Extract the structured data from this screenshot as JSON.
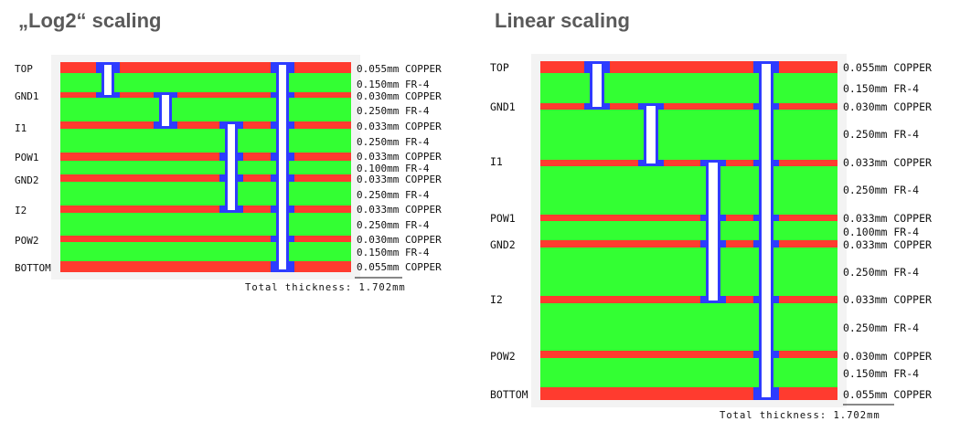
{
  "panels": {
    "left": {
      "title": "„Log2“ scaling"
    },
    "right": {
      "title": "Linear scaling"
    }
  },
  "layer_names": [
    "TOP",
    "GND1",
    "I1",
    "POW1",
    "GND2",
    "I2",
    "POW2",
    "BOTTOM"
  ],
  "stackup": [
    {
      "label": "0.055mm COPPER",
      "material": "copper",
      "thickness_mm": 0.055
    },
    {
      "label": "0.150mm FR-4",
      "material": "fr4",
      "thickness_mm": 0.15
    },
    {
      "label": "0.030mm COPPER",
      "material": "copper",
      "thickness_mm": 0.03
    },
    {
      "label": "0.250mm FR-4",
      "material": "fr4",
      "thickness_mm": 0.25
    },
    {
      "label": "0.033mm COPPER",
      "material": "copper",
      "thickness_mm": 0.033
    },
    {
      "label": "0.250mm FR-4",
      "material": "fr4",
      "thickness_mm": 0.25
    },
    {
      "label": "0.033mm COPPER",
      "material": "copper",
      "thickness_mm": 0.033
    },
    {
      "label": "0.100mm FR-4",
      "material": "fr4",
      "thickness_mm": 0.1
    },
    {
      "label": "0.033mm COPPER",
      "material": "copper",
      "thickness_mm": 0.033
    },
    {
      "label": "0.250mm FR-4",
      "material": "fr4",
      "thickness_mm": 0.25
    },
    {
      "label": "0.033mm COPPER",
      "material": "copper",
      "thickness_mm": 0.033
    },
    {
      "label": "0.250mm FR-4",
      "material": "fr4",
      "thickness_mm": 0.25
    },
    {
      "label": "0.030mm COPPER",
      "material": "copper",
      "thickness_mm": 0.03
    },
    {
      "label": "0.150mm FR-4",
      "material": "fr4",
      "thickness_mm": 0.15
    },
    {
      "label": "0.055mm COPPER",
      "material": "copper",
      "thickness_mm": 0.055
    }
  ],
  "total_thickness": "Total thickness: 1.702mm",
  "colors": {
    "copper": "#ff3b2f",
    "fr4": "#33ff33",
    "via": "#2d3cff",
    "text": "#111111",
    "title": "#5a5a5a"
  }
}
